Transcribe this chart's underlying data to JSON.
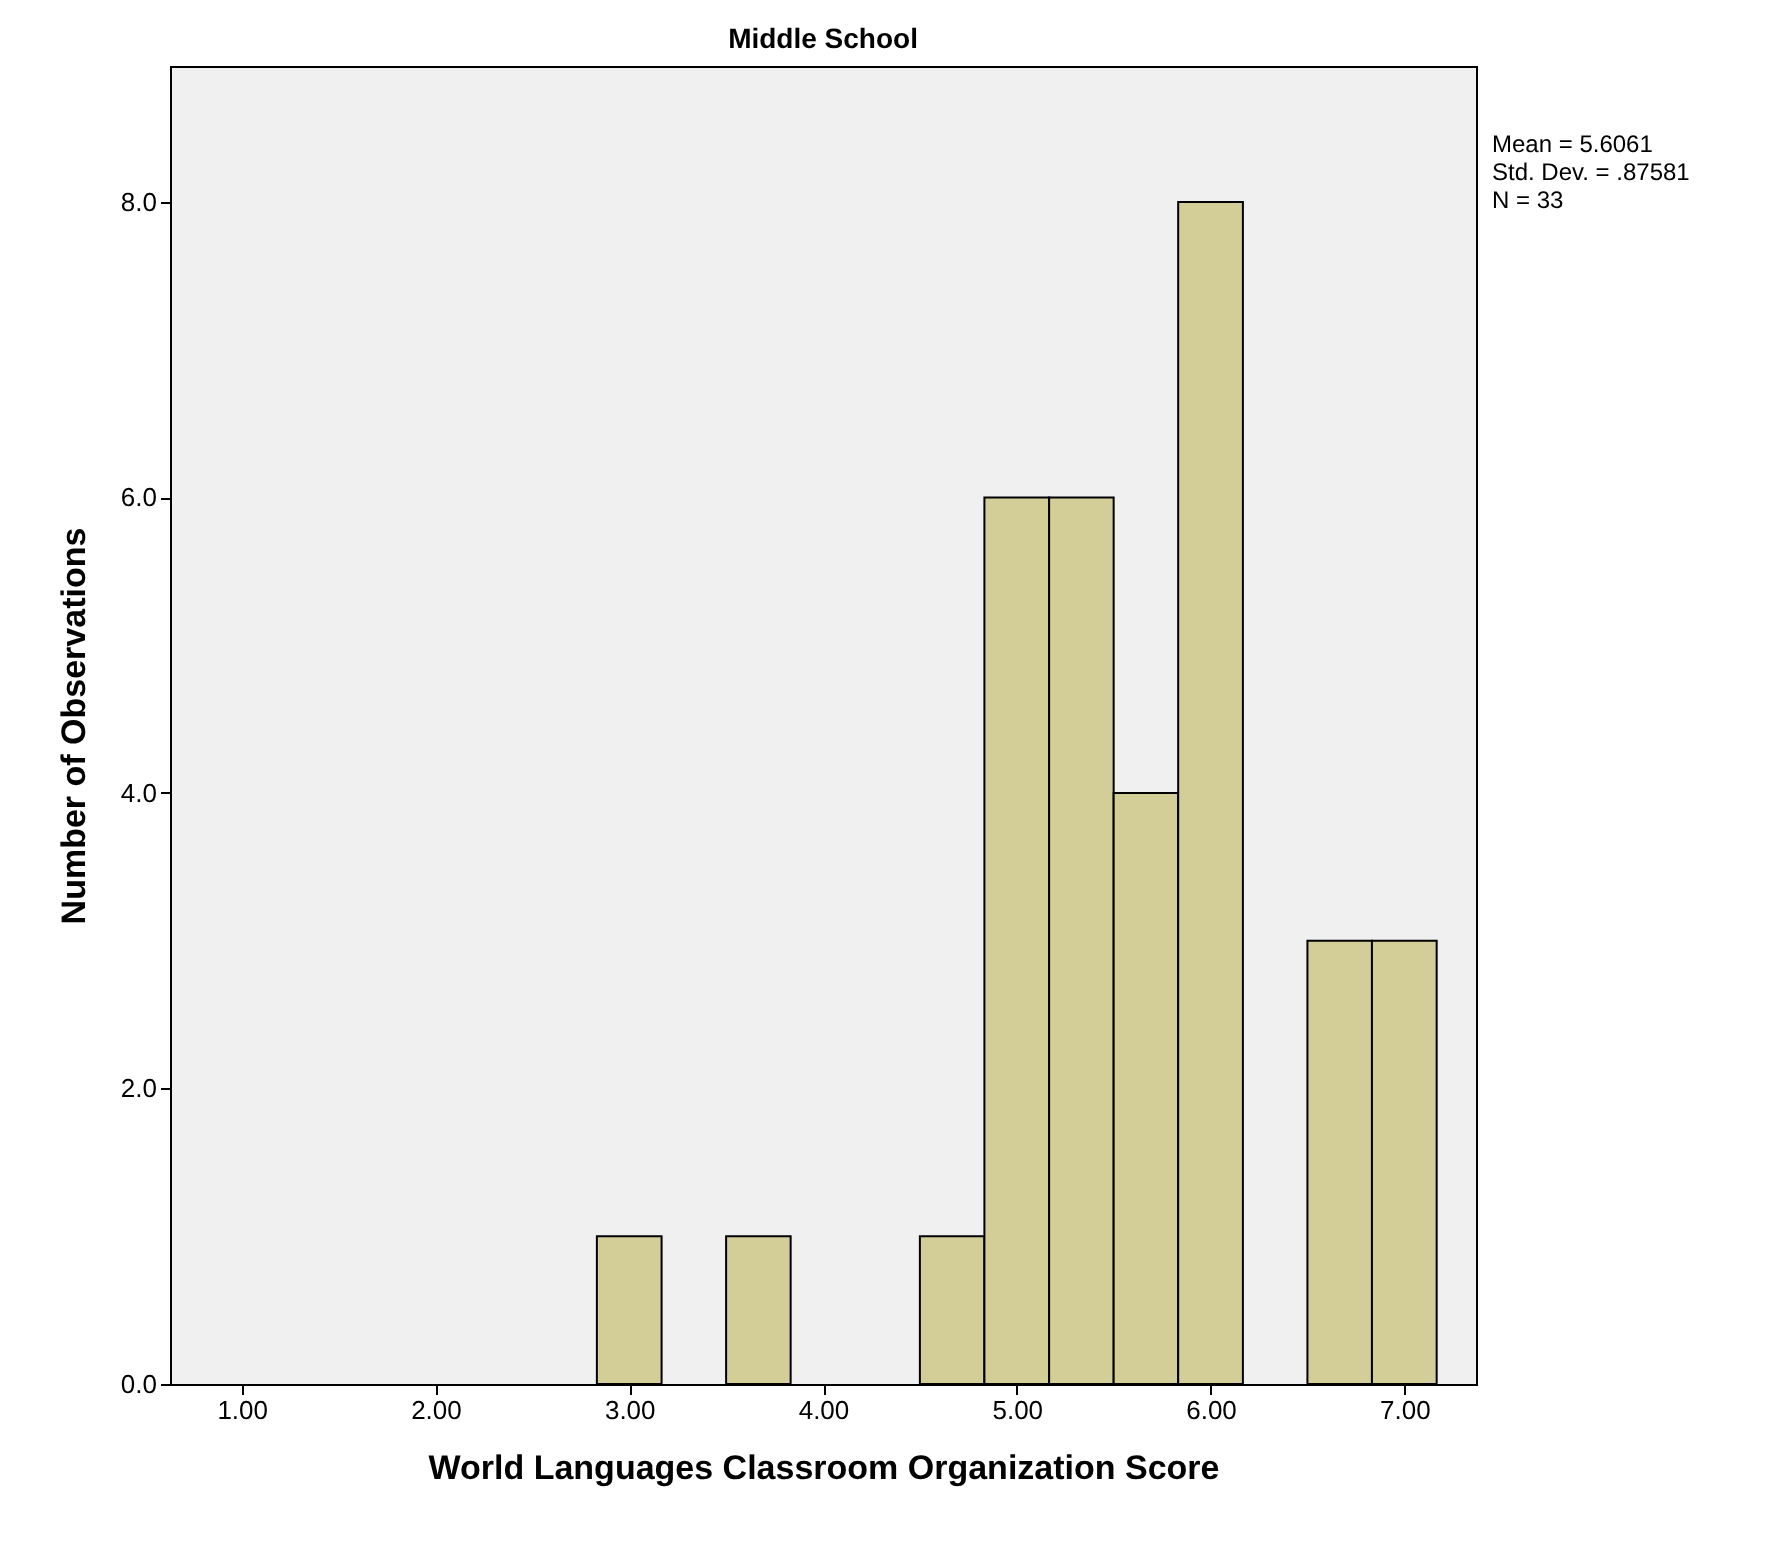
{
  "chart_data": {
    "type": "histogram",
    "title": "Middle School",
    "xlabel": "World Languages Classroom Organization Score",
    "ylabel": "Number of Observations",
    "bins": [
      2.833,
      3.167,
      3.5,
      3.833,
      4.167,
      4.5,
      4.833,
      5.167,
      5.5,
      5.833,
      6.167,
      6.5,
      6.833,
      7.167
    ],
    "values": [
      1,
      0,
      1,
      0,
      0,
      1,
      6,
      6,
      4,
      8,
      0,
      3,
      3
    ],
    "color": "#d3ce97",
    "xlim": [
      0.63,
      7.37
    ],
    "xticks": [
      {
        "value": 1,
        "label": "1.00"
      },
      {
        "value": 2,
        "label": "2.00"
      },
      {
        "value": 3,
        "label": "3.00"
      },
      {
        "value": 4,
        "label": "4.00"
      },
      {
        "value": 5,
        "label": "5.00"
      },
      {
        "value": 6,
        "label": "6.00"
      },
      {
        "value": 7,
        "label": "7.00"
      }
    ],
    "ylim": [
      0,
      8.92
    ],
    "yticks": [
      {
        "value": 0,
        "label": "0.0"
      },
      {
        "value": 2,
        "label": "2.0"
      },
      {
        "value": 4,
        "label": "4.0"
      },
      {
        "value": 6,
        "label": "6.0"
      },
      {
        "value": 8,
        "label": "8.0"
      }
    ],
    "annotations": [
      "Mean = 5.6061",
      "Std. Dev. = .87581",
      "N = 33"
    ],
    "grid": false
  }
}
